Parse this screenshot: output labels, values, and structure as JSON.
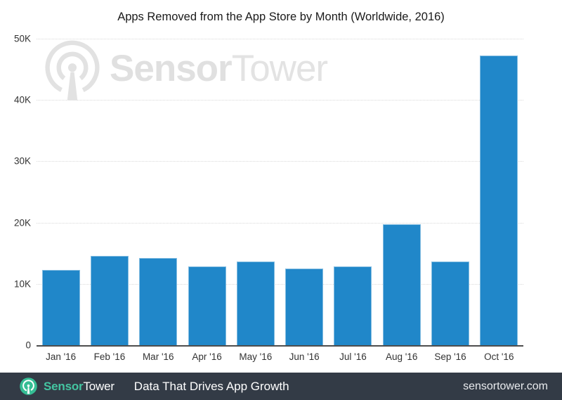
{
  "chart_data": {
    "type": "bar",
    "title": "Apps Removed from the App Store by Month (Worldwide, 2016)",
    "categories": [
      "Jan '16",
      "Feb '16",
      "Mar '16",
      "Apr '16",
      "May '16",
      "Jun '16",
      "Jul '16",
      "Aug '16",
      "Sep '16",
      "Oct '16"
    ],
    "values": [
      12300,
      14600,
      14200,
      12900,
      13600,
      12500,
      12800,
      19700,
      13700,
      47300
    ],
    "xlabel": "",
    "ylabel": "",
    "ylim": [
      0,
      50000
    ],
    "ytick_labels": [
      "50K",
      "40K",
      "30K",
      "20K",
      "10K",
      "0"
    ],
    "grid": "horizontal-dotted",
    "legend": "none",
    "bar_color": "#2087c9"
  },
  "watermark": {
    "icon": "sensortower-logo-icon",
    "brand_bold": "Sensor",
    "brand_light": "Tower",
    "color": "#e2e2e2"
  },
  "footer": {
    "icon": "sensortower-logo-icon",
    "brand_bold": "Sensor",
    "brand_light": "Tower",
    "tagline": "Data That Drives App Growth",
    "website": "sensortower.com",
    "bg_color": "#333b46",
    "teal": "#35bd94",
    "brand_bold_color": "#44c5a1",
    "brand_light_color": "#ffffff"
  }
}
